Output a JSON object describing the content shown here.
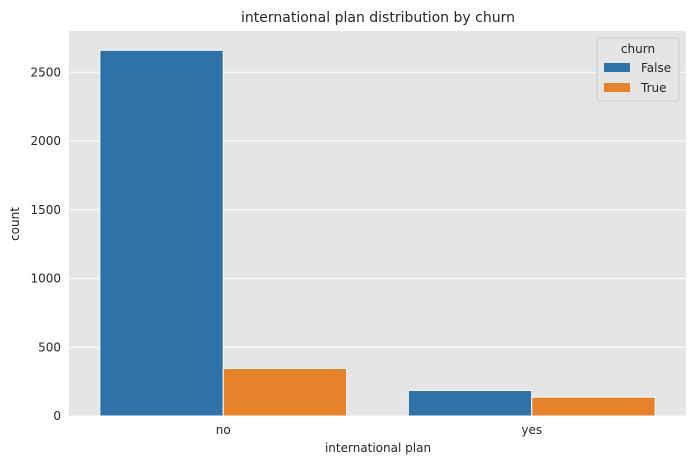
{
  "chart_data": {
    "type": "bar",
    "title": "international plan distribution by churn",
    "xlabel": "international plan",
    "ylabel": "count",
    "categories": [
      "no",
      "yes"
    ],
    "series": [
      {
        "name": "False",
        "values": [
          2660,
          186
        ],
        "color": "#2e72a8"
      },
      {
        "name": "True",
        "values": [
          346,
          137
        ],
        "color": "#e6832a"
      }
    ],
    "ylim": [
      0,
      2800
    ],
    "yticks": [
      0,
      500,
      1000,
      1500,
      2000,
      2500
    ],
    "legend": {
      "title": "churn",
      "position": "top-right"
    },
    "grid": true,
    "background": "#e5e5e5"
  }
}
